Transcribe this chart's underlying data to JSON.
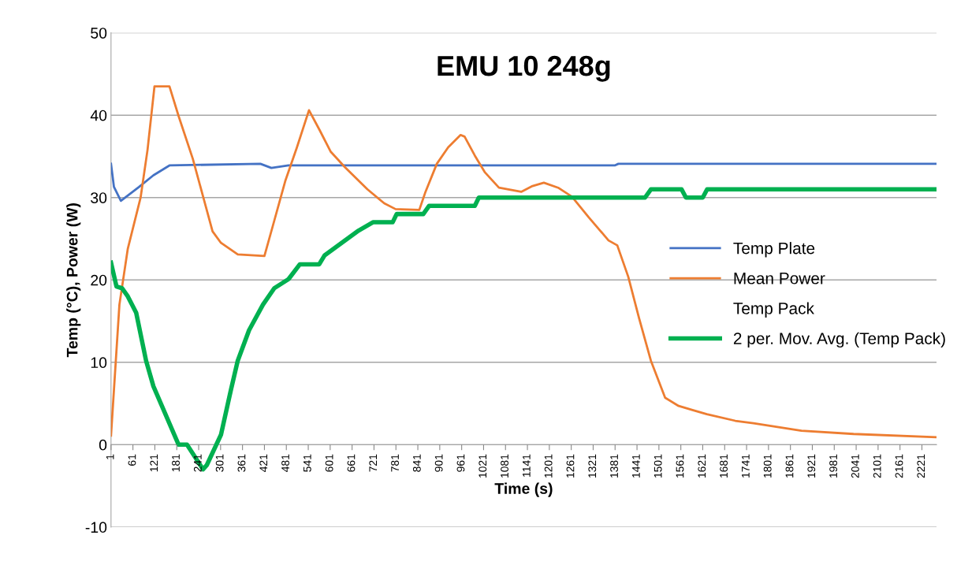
{
  "chart_data": {
    "type": "line",
    "title": "EMU 10 248g",
    "xlabel": "Time (s)",
    "ylabel": "Temp (°C), Power (W)",
    "xlim": [
      1,
      2261
    ],
    "xticks": [
      1,
      61,
      121,
      181,
      241,
      301,
      361,
      421,
      481,
      541,
      601,
      661,
      721,
      781,
      841,
      901,
      961,
      1021,
      1081,
      1141,
      1201,
      1261,
      1321,
      1381,
      1441,
      1501,
      1561,
      1621,
      1681,
      1741,
      1801,
      1861,
      1921,
      1981,
      2041,
      2101,
      2161,
      2221
    ],
    "ylim": [
      -10,
      50
    ],
    "yticks": [
      -10,
      0,
      10,
      20,
      30,
      40,
      50
    ],
    "grid": "y",
    "legend": "right",
    "series": [
      {
        "name": "Temp Plate",
        "color": "#4472c4",
        "x": [
          1,
          9,
          28,
          78,
          117,
          161,
          410,
          440,
          487,
          1380,
          1390,
          2261
        ],
        "values": [
          34.1,
          31.3,
          29.6,
          31.3,
          32.7,
          33.9,
          34.1,
          33.6,
          33.9,
          33.9,
          34.1,
          34.1
        ]
      },
      {
        "name": "Mean Power",
        "color": "#ed7d31",
        "x": [
          1,
          24,
          47,
          82,
          101,
          120,
          161,
          186,
          225,
          279,
          302,
          348,
          421,
          448,
          478,
          510,
          543,
          572,
          602,
          641,
          703,
          749,
          780,
          845,
          862,
          893,
          924,
          958,
          969,
          997,
          1024,
          1063,
          1124,
          1155,
          1186,
          1225,
          1263,
          1309,
          1363,
          1387,
          1417,
          1447,
          1479,
          1518,
          1555,
          1593,
          1632,
          1710,
          1760,
          1891,
          2034,
          2258
        ],
        "values": [
          1.1,
          17,
          23.8,
          30,
          35.8,
          43.5,
          43.5,
          39.9,
          34.7,
          25.9,
          24.5,
          23.1,
          22.9,
          27.2,
          32,
          36.1,
          40.6,
          38.2,
          35.6,
          33.7,
          31,
          29.3,
          28.6,
          28.5,
          30.7,
          34.1,
          36.1,
          37.6,
          37.4,
          35.1,
          33.1,
          31.2,
          30.7,
          31.4,
          31.8,
          31.2,
          30.1,
          27.6,
          24.8,
          24.2,
          20.4,
          15.3,
          10.2,
          5.7,
          4.7,
          4.2,
          3.7,
          2.9,
          2.6,
          1.7,
          1.3,
          0.9
        ]
      },
      {
        "name": "Temp Pack"
      },
      {
        "name": "2 per. Mov. Avg. (Temp Pack)",
        "color": "#00b050",
        "x": [
          1,
          16,
          31,
          47,
          70,
          97,
          117,
          186,
          209,
          253,
          263,
          302,
          329,
          348,
          379,
          417,
          448,
          487,
          518,
          571,
          586,
          617,
          648,
          679,
          718,
          772,
          783,
          856,
          872,
          997,
          1008,
          1463,
          1479,
          1563,
          1575,
          1621,
          1633,
          2261
        ],
        "values": [
          22.1,
          19.2,
          19,
          18,
          16,
          10.2,
          7.1,
          0,
          0,
          -3,
          -2.5,
          1.2,
          6.6,
          10.2,
          13.9,
          17,
          19,
          20.1,
          21.9,
          21.9,
          23,
          24,
          25,
          26,
          27,
          27,
          28,
          28,
          29,
          29,
          30,
          30,
          31,
          31,
          30,
          30,
          31,
          31
        ]
      }
    ]
  }
}
